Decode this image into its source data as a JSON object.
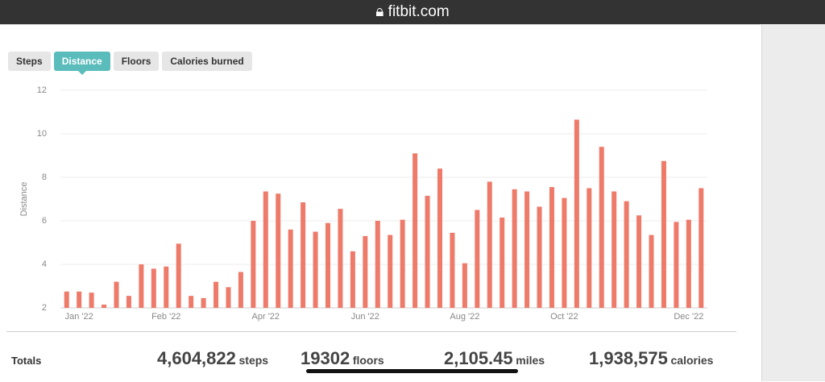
{
  "header": {
    "url": "fitbit.com"
  },
  "tabs": [
    "Steps",
    "Distance",
    "Floors",
    "Calories burned"
  ],
  "chart_data": {
    "type": "bar",
    "y_label": "Distance",
    "color": "#ee7a6a",
    "grid": true,
    "categories": [
      null,
      "Jan '22",
      null,
      null,
      null,
      null,
      null,
      null,
      "Feb '22",
      null,
      null,
      null,
      null,
      null,
      null,
      null,
      "Apr '22",
      null,
      null,
      null,
      null,
      null,
      null,
      null,
      "Jun '22",
      null,
      null,
      null,
      null,
      null,
      null,
      null,
      "Aug '22",
      null,
      null,
      null,
      null,
      null,
      null,
      null,
      "Oct '22",
      null,
      null,
      null,
      null,
      null,
      null,
      null,
      null,
      null,
      "Dec '22",
      null
    ],
    "values": [
      2.75,
      2.75,
      2.7,
      2.15,
      3.2,
      2.55,
      4.0,
      3.8,
      3.9,
      4.95,
      2.55,
      2.45,
      3.2,
      2.95,
      3.65,
      6.0,
      7.35,
      7.25,
      5.6,
      6.85,
      5.5,
      5.9,
      6.55,
      4.6,
      5.3,
      6.0,
      5.35,
      6.05,
      9.1,
      7.15,
      8.4,
      5.45,
      4.05,
      6.5,
      7.8,
      6.15,
      7.45,
      7.35,
      6.65,
      7.55,
      7.05,
      10.65,
      7.5,
      9.4,
      7.35,
      6.9,
      6.25,
      5.35,
      8.75,
      5.95,
      6.05,
      7.5
    ],
    "ylim": [
      2,
      12
    ],
    "yticks": [
      2,
      4,
      6,
      8,
      10,
      12
    ]
  },
  "totals": {
    "label": "Totals",
    "items": [
      {
        "value": "4,604,822",
        "unit": "steps"
      },
      {
        "value": "19302",
        "unit": "floors"
      },
      {
        "value": "2,105.45",
        "unit": "miles"
      },
      {
        "value": "1,938,575",
        "unit": "calories"
      }
    ]
  }
}
